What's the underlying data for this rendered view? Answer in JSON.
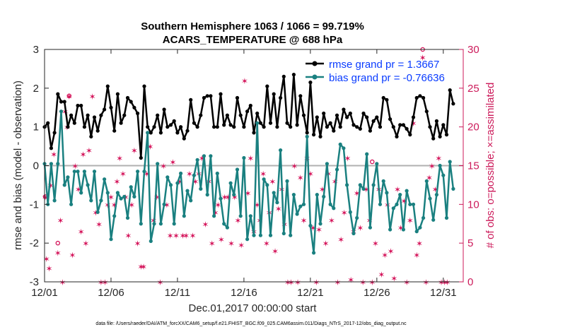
{
  "chart_data": {
    "type": "line",
    "title_line1": "Southern Hemisphere 1063 / 1066 = 99.719%",
    "title_line2": "ACARS_TEMPERATURE @ 688 hPa",
    "xlabel": "Dec.01,2017 00:00:00 start",
    "ylabel_left": "rmse and bias (model - observation)",
    "ylabel_right": "# of obs: o=possible; ×=assimilated",
    "xlim": [
      0,
      31.5
    ],
    "ylim_left": [
      -3,
      3
    ],
    "ylim_right": [
      0,
      30
    ],
    "xtick_labels": [
      "12/01",
      "12/06",
      "12/11",
      "12/16",
      "12/21",
      "12/26",
      "12/31"
    ],
    "xtick_positions": [
      0,
      5,
      10,
      15,
      20,
      25,
      30
    ],
    "ytick_left": [
      -3,
      -2,
      -1,
      0,
      1,
      2,
      3
    ],
    "ytick_right": [
      0,
      5,
      10,
      15,
      20,
      25,
      30
    ],
    "zero_line": 0,
    "series": [
      {
        "name": "rmse grand pr = 1.3667",
        "color": "#000000",
        "values": [
          1.0,
          1.1,
          0.45,
          0.85,
          1.85,
          1.65,
          1.65,
          1.0,
          1.3,
          1.1,
          1.55,
          1.55,
          1.0,
          1.3,
          0.75,
          1.25,
          0.9,
          1.3,
          1.45,
          2.05,
          1.5,
          0.9,
          1.85,
          1.1,
          1.3,
          1.75,
          1.65,
          1.5,
          1.35,
          0.2,
          2.05,
          1.0,
          0.85,
          1.0,
          1.3,
          0.85,
          1.45,
          1.0,
          1.05,
          1.15,
          0.85,
          1.0,
          0.7,
          0.9,
          1.7,
          1.1,
          1.0,
          1.3,
          1.75,
          1.8,
          1.8,
          1.0,
          1.0,
          1.85,
          1.05,
          1.3,
          1.05,
          1.0,
          1.75,
          1.3,
          1.0,
          1.4,
          1.55,
          0.85,
          1.35,
          1.1,
          1.0,
          2.05,
          1.1,
          1.85,
          1.0,
          1.75,
          2.3,
          1.1,
          1.0,
          2.35,
          1.05,
          1.8,
          1.3,
          0.85,
          2.15,
          0.8,
          1.25,
          0.75,
          1.35,
          1.0,
          1.1,
          0.9,
          1.3,
          1.0,
          1.45,
          1.25,
          1.35,
          1.05,
          1.0,
          0.95,
          1.35,
          1.25,
          0.9,
          1.15,
          1.25,
          1.0,
          1.75,
          1.7,
          1.2,
          1.0,
          0.75,
          1.05,
          1.05,
          0.95,
          0.8,
          1.25,
          1.75,
          1.8,
          1.75,
          1.4,
          1.0,
          0.7,
          1.15,
          0.75,
          1.05,
          0.8,
          1.95,
          1.6
        ],
        "x_start": 0.0,
        "x_step": 0.25
      },
      {
        "name": "bias grand pr = -0.76636",
        "color": "#1a8080",
        "values": [
          0.05,
          -1.0,
          0.05,
          -0.9,
          0.05,
          1.4,
          -0.5,
          -0.3,
          -1.0,
          -0.15,
          -0.15,
          -0.7,
          -0.15,
          -0.5,
          -0.9,
          -0.15,
          -1.2,
          -0.9,
          -0.35,
          -0.7,
          -1.9,
          -1.3,
          -0.7,
          -0.85,
          -0.8,
          -1.35,
          -0.55,
          -0.8,
          -0.15,
          -1.5,
          -0.15,
          0.85,
          -1.95,
          -1.5,
          0.05,
          -1.5,
          -1.0,
          -0.3,
          -0.5,
          -1.5,
          -0.45,
          -0.2,
          -1.3,
          -0.65,
          -0.9,
          -0.25,
          0.15,
          -0.6,
          0.25,
          -0.75,
          0.25,
          -1.3,
          -0.2,
          -0.85,
          -1.5,
          -1.6,
          -0.45,
          -0.75,
          -0.1,
          -1.3,
          0.2,
          -1.9,
          -1.3,
          -1.8,
          1.1,
          -1.8,
          -0.35,
          -0.5,
          -1.8,
          -0.7,
          -0.95,
          0.4,
          -1.75,
          -0.4,
          -1.8,
          -0.75,
          -1.25,
          -1.05,
          -1.0,
          0.75,
          -1.55,
          -2.25,
          -0.75,
          -1.5,
          -0.8,
          0.05,
          -1.0,
          -1.1,
          -0.1,
          0.55,
          0.45,
          -0.5,
          -1.2,
          -1.75,
          -1.35,
          -0.5,
          -0.6,
          0.3,
          -1.6,
          -0.5,
          0.05,
          -1.0,
          -0.4,
          -0.7,
          -1.65,
          -1.1,
          -1.0,
          -0.75,
          -1.65,
          -0.65,
          -1.0,
          -1.0,
          -1.7,
          -1.6,
          -1.35,
          -0.4,
          -0.85,
          -1.4,
          -0.75,
          0.0,
          -0.25,
          -1.35,
          0.1,
          -0.6
        ],
        "x_start": 0.0,
        "x_step": 0.25
      }
    ],
    "obs_assimilated": {
      "name": "# of obs assimilated",
      "color": "#d4145a",
      "marker": "✶",
      "points": [
        [
          0.05,
          11
        ],
        [
          0.15,
          3
        ],
        [
          0.35,
          1.8
        ],
        [
          0.45,
          12.5
        ],
        [
          0.7,
          16.5
        ],
        [
          1.0,
          3.8
        ],
        [
          1.2,
          8
        ],
        [
          1.35,
          0
        ],
        [
          1.55,
          22
        ],
        [
          1.7,
          20
        ],
        [
          1.85,
          24
        ],
        [
          2.1,
          3.5
        ],
        [
          2.3,
          15
        ],
        [
          2.55,
          12
        ],
        [
          2.75,
          6.5
        ],
        [
          2.9,
          16.5
        ],
        [
          3.1,
          5
        ],
        [
          3.35,
          17
        ],
        [
          3.6,
          24
        ],
        [
          3.85,
          9
        ],
        [
          4.1,
          7.5
        ],
        [
          4.25,
          0
        ],
        [
          4.55,
          0
        ],
        [
          4.75,
          10
        ],
        [
          5.0,
          11
        ],
        [
          5.25,
          10
        ],
        [
          5.45,
          13
        ],
        [
          5.65,
          16
        ],
        [
          5.9,
          14
        ],
        [
          6.1,
          11
        ],
        [
          6.3,
          6
        ],
        [
          6.55,
          10
        ],
        [
          6.75,
          17
        ],
        [
          7.0,
          5
        ],
        [
          7.25,
          2
        ],
        [
          7.45,
          2
        ],
        [
          7.7,
          14
        ],
        [
          7.95,
          17.5
        ],
        [
          8.2,
          8
        ],
        [
          8.45,
          11
        ],
        [
          8.7,
          0
        ],
        [
          8.95,
          15
        ],
        [
          9.2,
          10
        ],
        [
          9.45,
          6
        ],
        [
          9.65,
          15.5
        ],
        [
          9.9,
          6
        ],
        [
          10.15,
          13
        ],
        [
          10.4,
          6
        ],
        [
          10.65,
          6
        ],
        [
          10.9,
          14
        ],
        [
          11.15,
          6
        ],
        [
          11.35,
          13
        ],
        [
          11.6,
          14
        ],
        [
          11.85,
          16
        ],
        [
          12.1,
          7.5
        ],
        [
          12.35,
          13
        ],
        [
          12.6,
          5
        ],
        [
          12.85,
          9
        ],
        [
          13.05,
          10
        ],
        [
          13.3,
          5.5
        ],
        [
          13.55,
          11
        ],
        [
          13.8,
          11
        ],
        [
          14.05,
          5
        ],
        [
          14.3,
          11
        ],
        [
          14.55,
          8
        ],
        [
          14.8,
          4.8
        ],
        [
          15.05,
          26
        ],
        [
          15.3,
          11.5
        ],
        [
          15.5,
          16
        ],
        [
          15.75,
          6.5
        ],
        [
          16.0,
          10
        ],
        [
          16.2,
          8
        ],
        [
          16.45,
          14
        ],
        [
          16.7,
          5
        ],
        [
          16.9,
          9
        ],
        [
          17.15,
          13
        ],
        [
          17.35,
          4
        ],
        [
          17.6,
          9.5
        ],
        [
          17.85,
          12
        ],
        [
          18.05,
          7.5
        ],
        [
          18.3,
          0
        ],
        [
          18.55,
          0
        ],
        [
          18.8,
          15
        ],
        [
          19.05,
          0
        ],
        [
          19.25,
          13.5
        ],
        [
          19.5,
          8
        ],
        [
          19.75,
          16
        ],
        [
          20.0,
          14
        ],
        [
          20.2,
          7
        ],
        [
          20.45,
          0
        ],
        [
          20.65,
          6.8
        ],
        [
          20.9,
          12
        ],
        [
          21.15,
          5
        ],
        [
          21.35,
          14
        ],
        [
          21.6,
          8
        ],
        [
          21.85,
          13
        ],
        [
          22.05,
          0
        ],
        [
          22.3,
          5.5
        ],
        [
          22.55,
          9
        ],
        [
          22.8,
          16
        ],
        [
          23.05,
          0.3
        ],
        [
          23.25,
          6.5
        ],
        [
          23.5,
          11.5
        ],
        [
          23.75,
          7
        ],
        [
          23.95,
          0
        ],
        [
          24.2,
          12
        ],
        [
          24.45,
          8
        ],
        [
          24.65,
          0
        ],
        [
          24.9,
          5
        ],
        [
          25.15,
          12
        ],
        [
          25.35,
          1
        ],
        [
          25.6,
          3.5
        ],
        [
          25.8,
          10
        ],
        [
          26.05,
          4
        ],
        [
          26.3,
          0.5
        ],
        [
          26.55,
          12
        ],
        [
          26.8,
          7
        ],
        [
          27.05,
          10.5
        ],
        [
          27.25,
          0
        ],
        [
          27.5,
          8
        ],
        [
          27.75,
          20.5
        ],
        [
          28.0,
          3.5
        ],
        [
          28.2,
          5
        ],
        [
          28.45,
          29
        ],
        [
          28.7,
          0
        ],
        [
          28.95,
          13.5
        ],
        [
          29.15,
          15
        ],
        [
          29.4,
          12
        ],
        [
          29.65,
          16
        ],
        [
          29.85,
          0
        ],
        [
          30.1,
          0
        ],
        [
          30.3,
          0
        ]
      ]
    },
    "obs_possible": {
      "name": "# of obs possible",
      "color": "#d4145a",
      "marker": "o",
      "points": [
        [
          0.05,
          11
        ],
        [
          1.0,
          5
        ],
        [
          1.85,
          24
        ],
        [
          24.65,
          15.5
        ],
        [
          28.45,
          30
        ]
      ]
    }
  }
}
